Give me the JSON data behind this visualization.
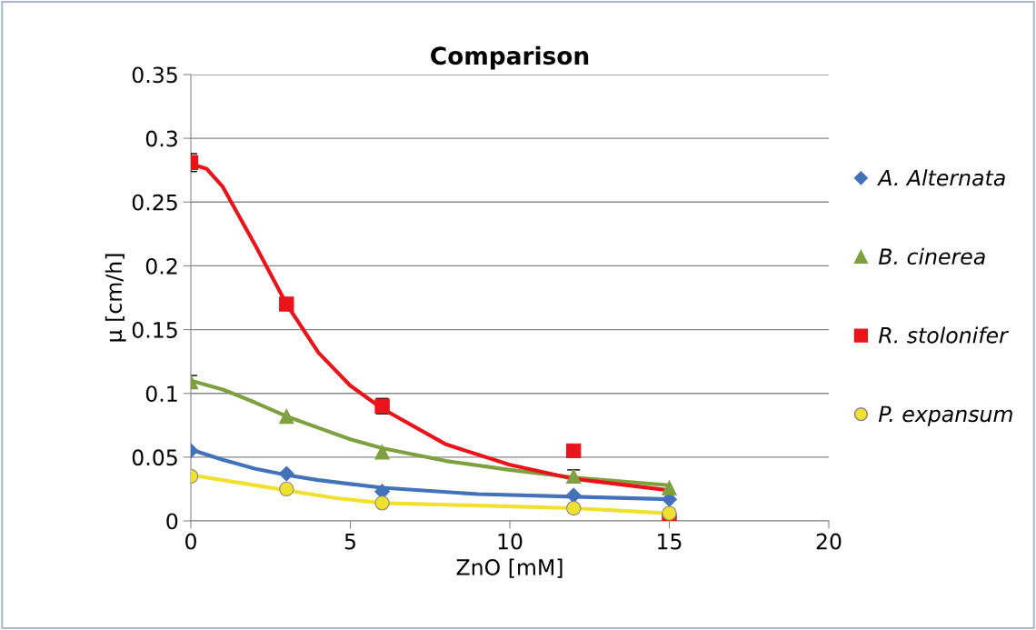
{
  "chart_data": {
    "type": "scatter",
    "title": "Comparison",
    "xlabel": "ZnO [mM]",
    "ylabel": "μ [cm/h]",
    "xlim": [
      0,
      20
    ],
    "xticks": [
      0,
      5,
      10,
      15,
      20
    ],
    "ylim": [
      0,
      0.35
    ],
    "yticks": [
      0,
      0.05,
      0.1,
      0.15,
      0.2,
      0.25,
      0.3,
      0.35
    ],
    "grid": "y",
    "legend": "right",
    "series": [
      {
        "name": "A. Alternata",
        "color": "#4372b8",
        "marker": "diamond",
        "x": [
          0,
          3,
          6,
          12,
          15
        ],
        "values": [
          0.055,
          0.037,
          0.023,
          0.02,
          0.017
        ]
      },
      {
        "name": "B. cinerea",
        "color": "#7ea040",
        "marker": "triangle",
        "x": [
          0,
          3,
          6,
          12,
          15
        ],
        "values": [
          0.109,
          0.082,
          0.054,
          0.035,
          0.026
        ],
        "errors": [
          0.005,
          null,
          null,
          0.005,
          null
        ]
      },
      {
        "name": "R. stolonifer",
        "color": "#e8141a",
        "marker": "square",
        "x": [
          0,
          3,
          6,
          12,
          15
        ],
        "values": [
          0.281,
          0.17,
          0.09,
          0.055,
          0.0
        ],
        "errors": [
          0.007,
          null,
          0.006,
          null,
          null
        ]
      },
      {
        "name": "P. expansum",
        "color": "#f0e030",
        "marker": "circle",
        "x": [
          0,
          3,
          6,
          12,
          15
        ],
        "values": [
          0.035,
          0.025,
          0.014,
          0.01,
          0.006
        ]
      },
      {
        "type": "line",
        "color": "#4372b8",
        "marker": "none",
        "x": [
          0,
          1,
          2,
          3,
          4,
          5,
          6,
          9,
          12,
          15
        ],
        "values": [
          0.056,
          0.048,
          0.041,
          0.036,
          0.032,
          0.029,
          0.026,
          0.021,
          0.019,
          0.017
        ]
      },
      {
        "type": "line",
        "color": "#7ea040",
        "marker": "none",
        "x": [
          0,
          1,
          2,
          3,
          4,
          5,
          6,
          8,
          10,
          12,
          15
        ],
        "values": [
          0.11,
          0.103,
          0.093,
          0.082,
          0.073,
          0.064,
          0.057,
          0.047,
          0.04,
          0.034,
          0.028
        ]
      },
      {
        "type": "line",
        "color": "#e8141a",
        "marker": "none",
        "x": [
          0,
          0.5,
          1,
          2,
          3,
          4,
          5,
          6,
          8,
          10,
          12,
          13,
          14,
          15
        ],
        "values": [
          0.28,
          0.276,
          0.262,
          0.217,
          0.17,
          0.132,
          0.106,
          0.088,
          0.06,
          0.044,
          0.033,
          0.03,
          0.027,
          0.024
        ]
      },
      {
        "type": "line",
        "color": "#f0e030",
        "marker": "none",
        "x": [
          0,
          1.5,
          3,
          4.5,
          6,
          9,
          12,
          15
        ],
        "values": [
          0.036,
          0.03,
          0.024,
          0.018,
          0.014,
          0.012,
          0.01,
          0.006
        ]
      }
    ]
  }
}
